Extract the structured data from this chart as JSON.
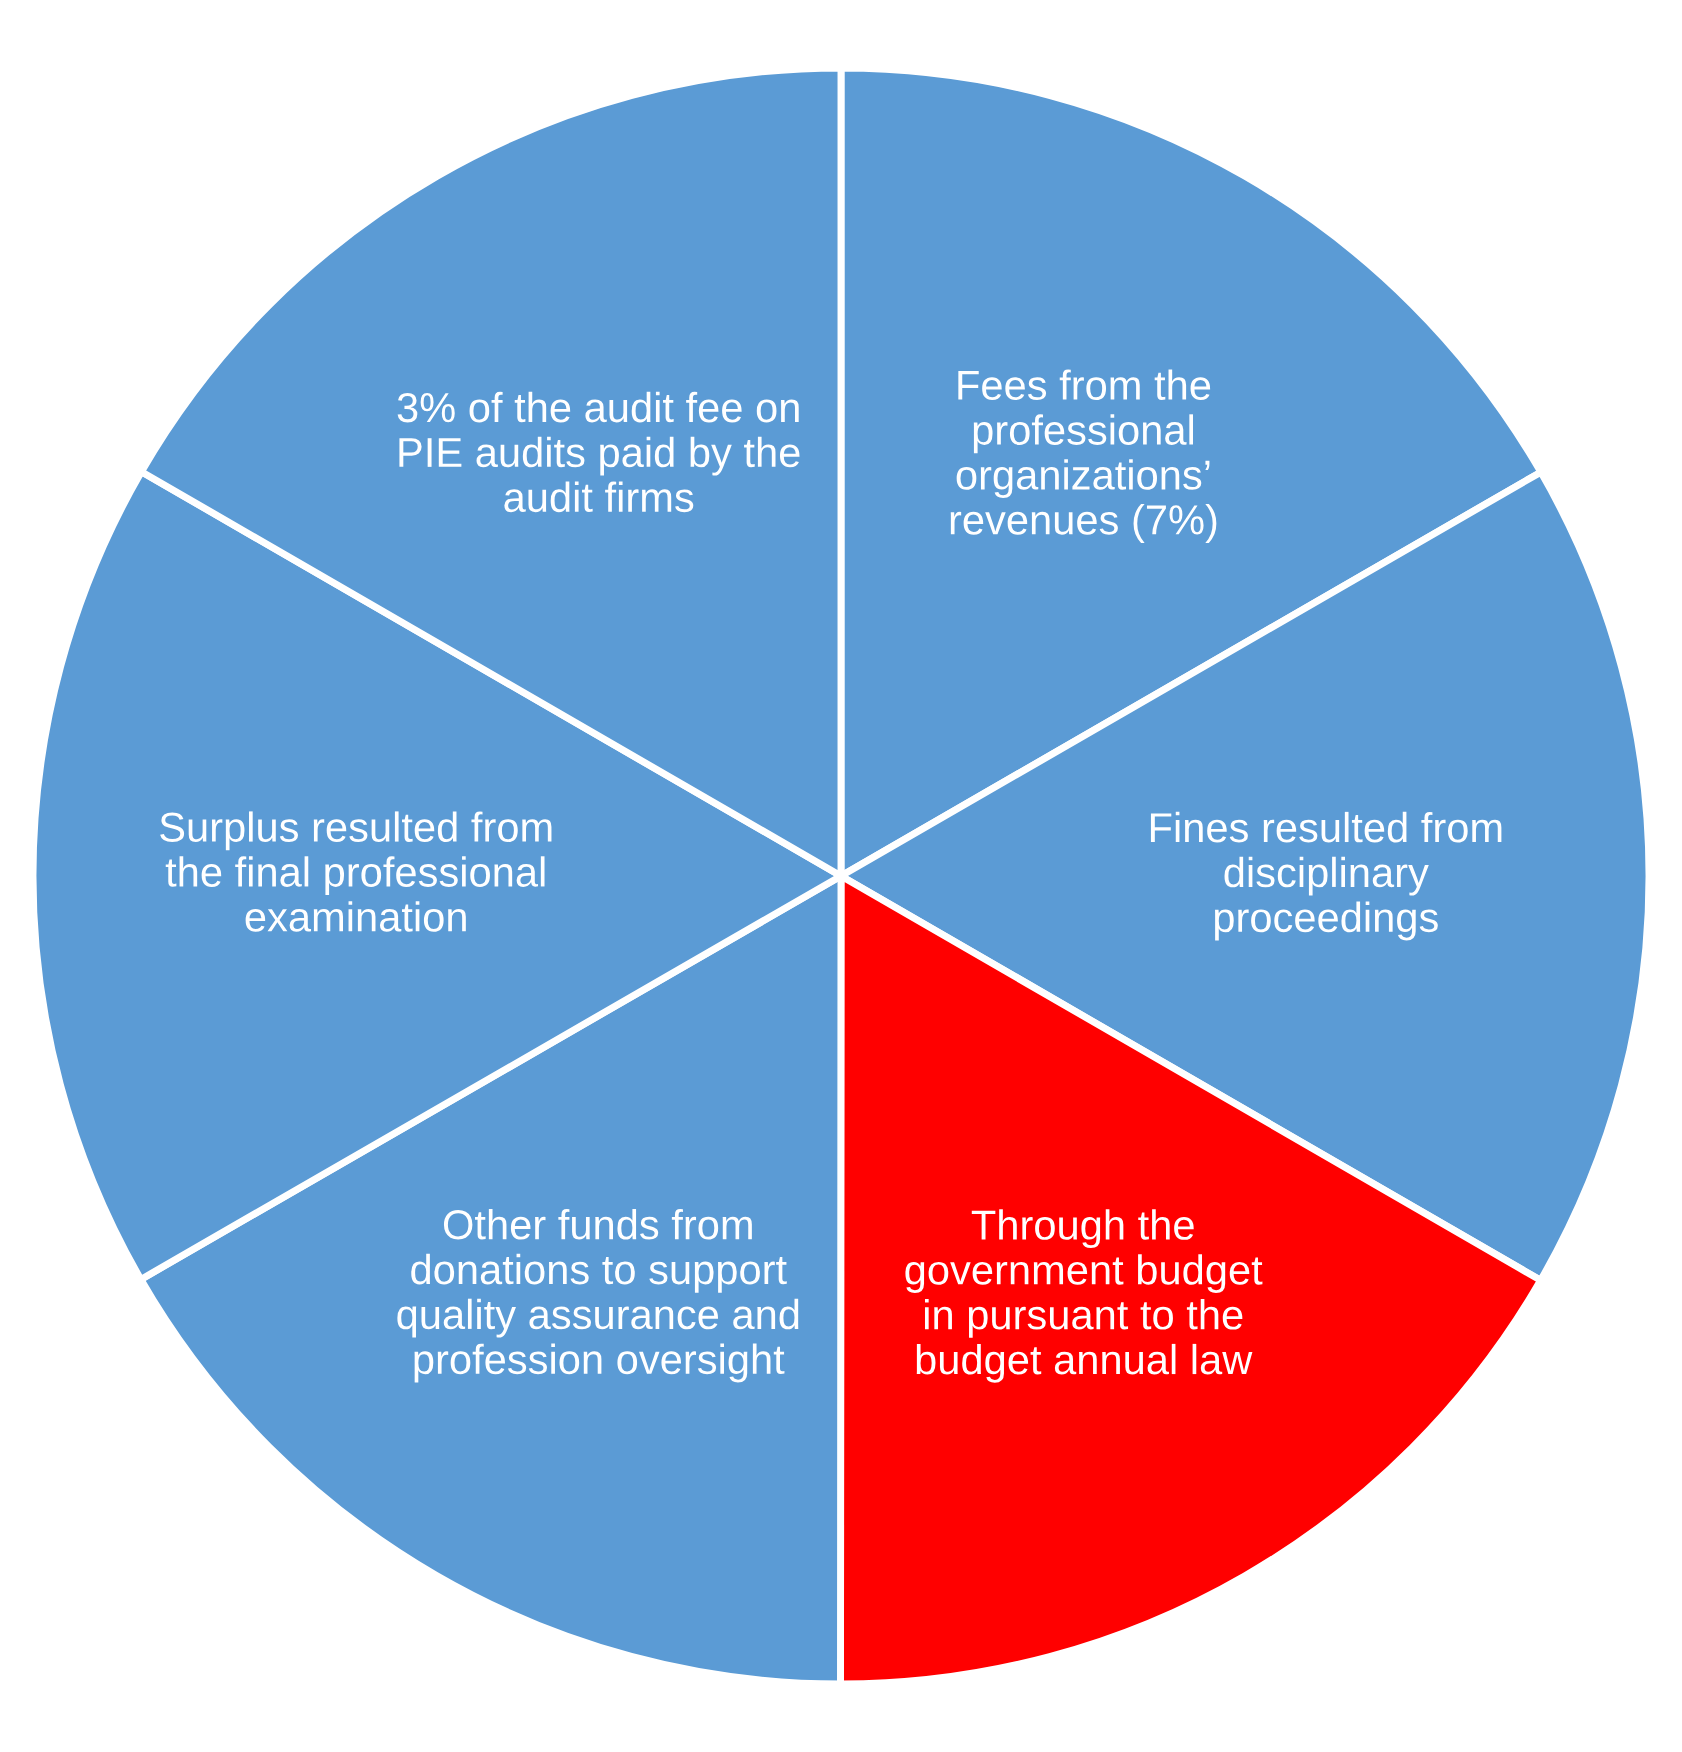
{
  "chart_data": {
    "type": "pie",
    "categories": [
      "Fees from the\nprofessional\norganizations’\nrevenues (7%)",
      "Fines resulted from\ndisciplinary\nproceedings",
      "Through the\ngovernment budget\nin pursuant to the\nbudget annual law",
      "Other funds from\ndonations to support\nquality assurance and\nprofession oversight",
      "Surplus resulted from\nthe final professional\nexamination",
      "3% of the audit fee on\nPIE audits paid by the\naudit firms"
    ],
    "values": [
      16.67,
      16.67,
      16.67,
      16.67,
      16.66,
      16.66
    ],
    "colors": [
      "#5b9bd5",
      "#5b9bd5",
      "#ff0000",
      "#5b9bd5",
      "#5b9bd5",
      "#5b9bd5"
    ]
  }
}
